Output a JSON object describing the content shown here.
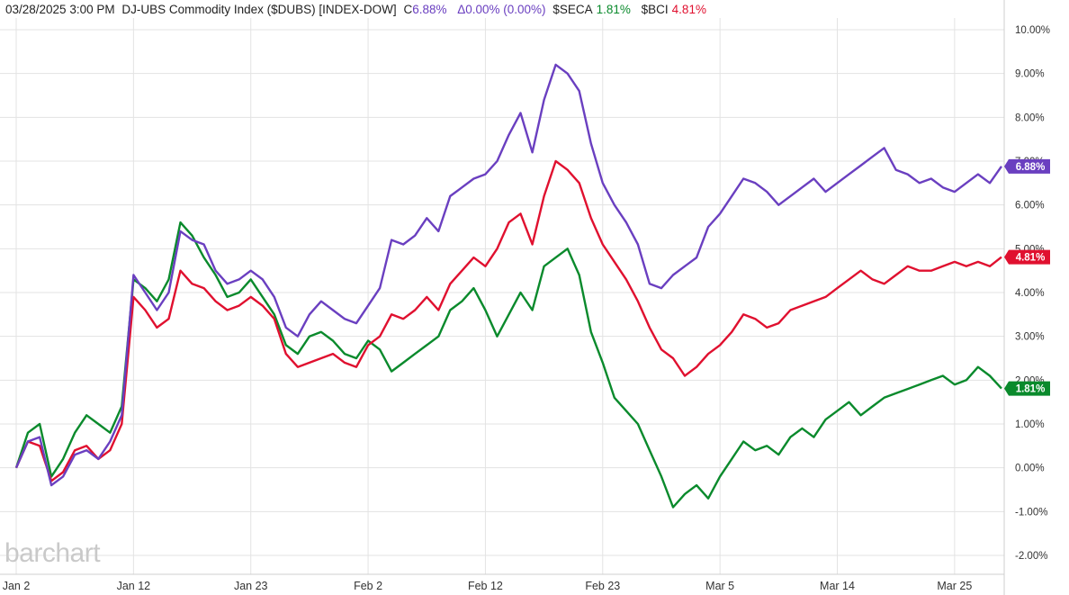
{
  "header": {
    "datetime": "03/28/2025  3:00 PM",
    "symbol": "DJ-UBS Commodity Index ($DUBS) [INDEX-DOW]",
    "close_prefix": "C",
    "close_value": "6.88%",
    "change": "Δ0.00% (0.00%)",
    "s2_symbol": "$SECA",
    "s2_value": "1.81%",
    "s3_symbol": "$BCI",
    "s3_value": "4.81%"
  },
  "watermark": "barchart",
  "colors": {
    "purple": "#6a3fc0",
    "green": "#0a8a2c",
    "red": "#e0102f",
    "grid": "#e3e3e3"
  },
  "chart_data": {
    "type": "line",
    "ylim": [
      -2.2,
      10.2
    ],
    "y_ticks": [
      "10.00%",
      "9.00%",
      "8.00%",
      "7.00%",
      "6.00%",
      "5.00%",
      "4.00%",
      "3.00%",
      "2.00%",
      "1.00%",
      "0.00%",
      "-1.00%",
      "-2.00%"
    ],
    "y_tick_values": [
      10,
      9,
      8,
      7,
      6,
      5,
      4,
      3,
      2,
      1,
      0,
      -1,
      -2
    ],
    "x_ticks": [
      "Jan 2",
      "Jan 12",
      "Jan 23",
      "Feb 2",
      "Feb 12",
      "Feb 23",
      "Mar 5",
      "Mar 14",
      "Mar 25"
    ],
    "x_tick_index": [
      0,
      10,
      20,
      30,
      40,
      50,
      60,
      70,
      80
    ],
    "x_count": 85,
    "series": [
      {
        "name": "$DUBS",
        "color": "#6a3fc0",
        "last": "6.88%",
        "values": [
          0.0,
          0.6,
          0.7,
          -0.4,
          -0.2,
          0.3,
          0.4,
          0.2,
          0.6,
          1.2,
          4.4,
          4.0,
          3.6,
          4.0,
          5.4,
          5.2,
          5.1,
          4.5,
          4.2,
          4.3,
          4.5,
          4.3,
          3.9,
          3.2,
          3.0,
          3.5,
          3.8,
          3.6,
          3.4,
          3.3,
          3.7,
          4.1,
          5.2,
          5.1,
          5.3,
          5.7,
          5.4,
          6.2,
          6.4,
          6.6,
          6.7,
          7.0,
          7.6,
          8.1,
          7.2,
          8.4,
          9.2,
          9.0,
          8.6,
          7.4,
          6.5,
          6.0,
          5.6,
          5.1,
          4.2,
          4.1,
          4.4,
          4.6,
          4.8,
          5.5,
          5.8,
          6.2,
          6.6,
          6.5,
          6.3,
          6.0,
          6.2,
          6.4,
          6.6,
          6.3,
          6.5,
          6.7,
          6.9,
          7.1,
          7.3,
          6.8,
          6.7,
          6.5,
          6.6,
          6.4,
          6.3,
          6.5,
          6.7,
          6.5,
          6.88
        ]
      },
      {
        "name": "$BCI",
        "color": "#e0102f",
        "last": "4.81%",
        "values": [
          0.0,
          0.6,
          0.5,
          -0.3,
          -0.1,
          0.4,
          0.5,
          0.2,
          0.4,
          1.0,
          3.9,
          3.6,
          3.2,
          3.4,
          4.5,
          4.2,
          4.1,
          3.8,
          3.6,
          3.7,
          3.9,
          3.7,
          3.4,
          2.6,
          2.3,
          2.4,
          2.5,
          2.6,
          2.4,
          2.3,
          2.8,
          3.0,
          3.5,
          3.4,
          3.6,
          3.9,
          3.6,
          4.2,
          4.5,
          4.8,
          4.6,
          5.0,
          5.6,
          5.8,
          5.1,
          6.2,
          7.0,
          6.8,
          6.5,
          5.7,
          5.1,
          4.7,
          4.3,
          3.8,
          3.2,
          2.7,
          2.5,
          2.1,
          2.3,
          2.6,
          2.8,
          3.1,
          3.5,
          3.4,
          3.2,
          3.3,
          3.6,
          3.7,
          3.8,
          3.9,
          4.1,
          4.3,
          4.5,
          4.3,
          4.2,
          4.4,
          4.6,
          4.5,
          4.5,
          4.6,
          4.7,
          4.6,
          4.7,
          4.6,
          4.81
        ]
      },
      {
        "name": "$SECA",
        "color": "#0a8a2c",
        "last": "1.81%",
        "values": [
          0.0,
          0.8,
          1.0,
          -0.2,
          0.2,
          0.8,
          1.2,
          1.0,
          0.8,
          1.4,
          4.3,
          4.1,
          3.8,
          4.3,
          5.6,
          5.3,
          4.8,
          4.4,
          3.9,
          4.0,
          4.3,
          3.9,
          3.5,
          2.8,
          2.6,
          3.0,
          3.1,
          2.9,
          2.6,
          2.5,
          2.9,
          2.7,
          2.2,
          2.4,
          2.6,
          2.8,
          3.0,
          3.6,
          3.8,
          4.1,
          3.6,
          3.0,
          3.5,
          4.0,
          3.6,
          4.6,
          4.8,
          5.0,
          4.4,
          3.1,
          2.4,
          1.6,
          1.3,
          1.0,
          0.4,
          -0.2,
          -0.9,
          -0.6,
          -0.4,
          -0.7,
          -0.2,
          0.2,
          0.6,
          0.4,
          0.5,
          0.3,
          0.7,
          0.9,
          0.7,
          1.1,
          1.3,
          1.5,
          1.2,
          1.4,
          1.6,
          1.7,
          1.8,
          1.9,
          2.0,
          2.1,
          1.9,
          2.0,
          2.3,
          2.1,
          1.81
        ]
      }
    ]
  }
}
